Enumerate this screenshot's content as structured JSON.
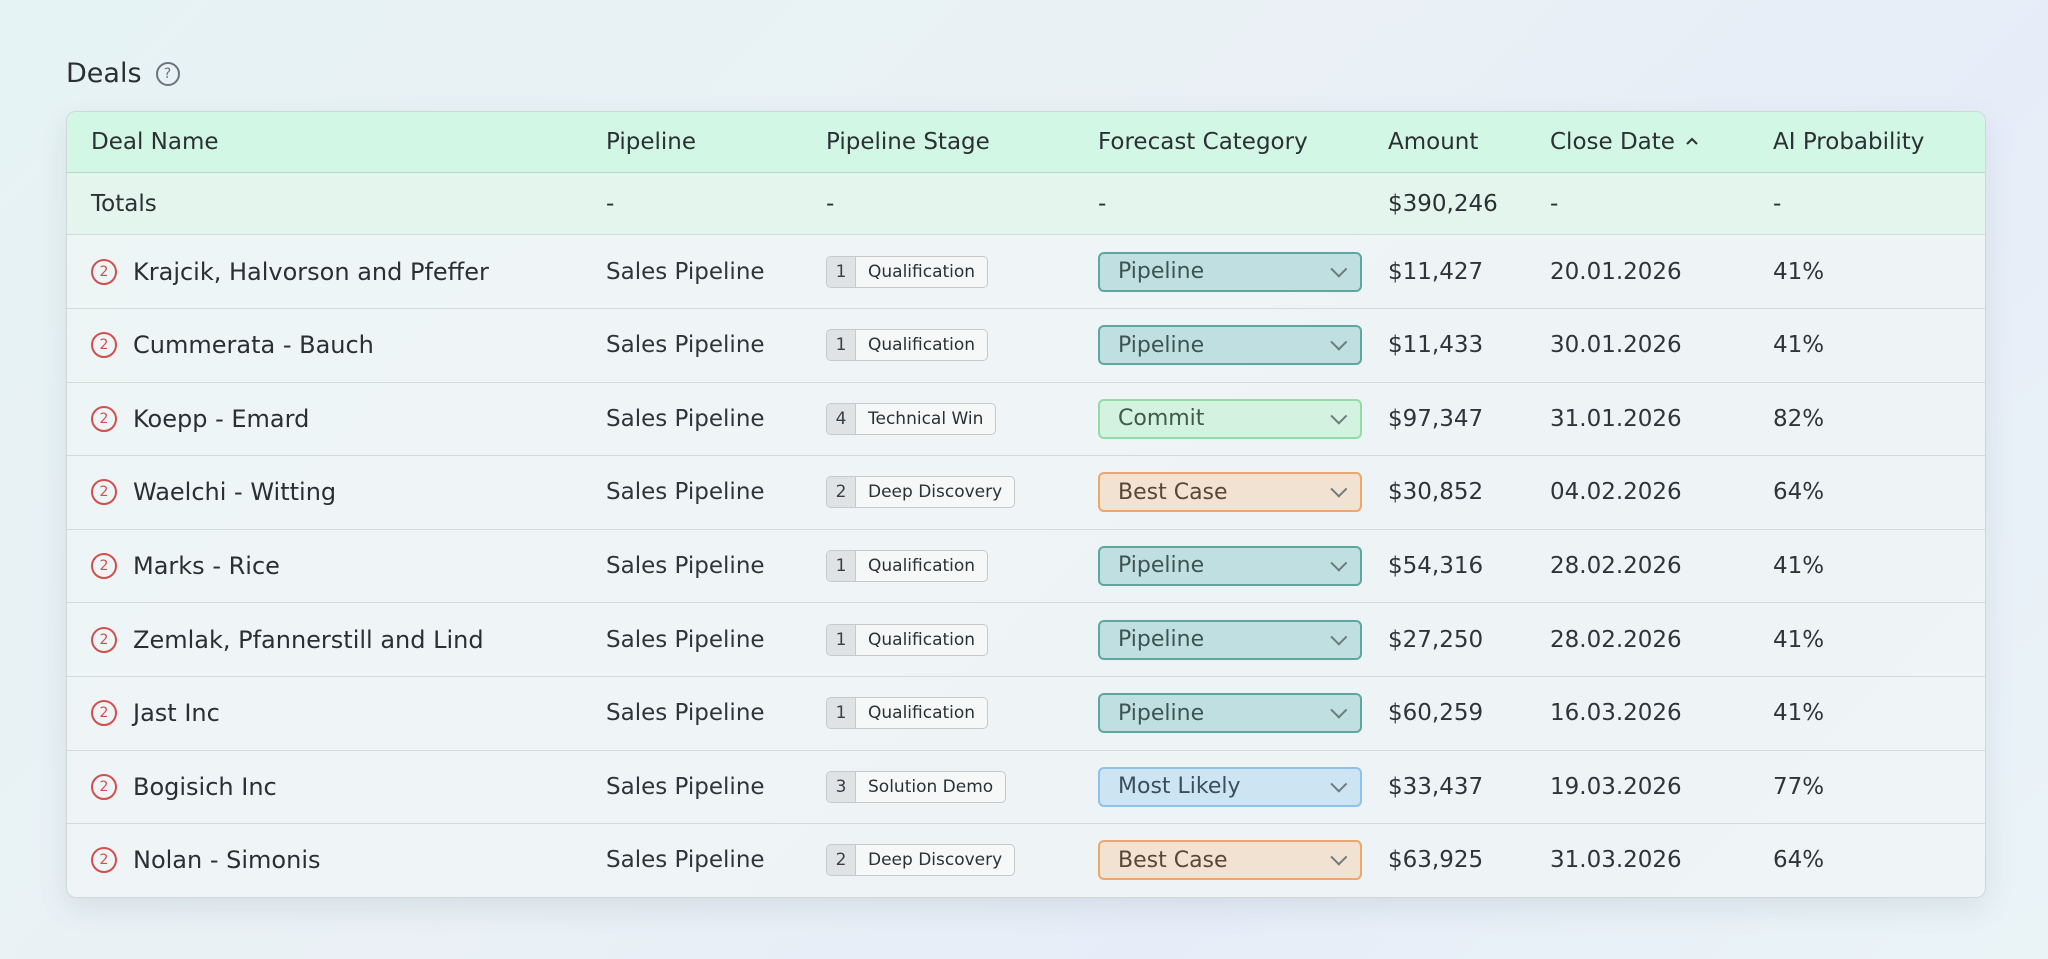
{
  "page": {
    "title": "Deals"
  },
  "columns": [
    "Deal Name",
    "Pipeline",
    "Pipeline Stage",
    "Forecast Category",
    "Amount",
    "Close Date",
    "AI Probability"
  ],
  "sort": {
    "column": "Close Date",
    "direction": "ascending",
    "icon": "chevron-up-icon"
  },
  "totals": {
    "label": "Totals",
    "pipeline": "-",
    "stage": "-",
    "forecast": "-",
    "amount": "$390,246",
    "close_date": "-",
    "probability": "-"
  },
  "rows": [
    {
      "badge": "2",
      "name": "Krajcik, Halvorson and Pfeffer",
      "pipeline": "Sales Pipeline",
      "stage_num": "1",
      "stage": "Qualification",
      "forecast": "Pipeline",
      "amount": "$11,427",
      "close_date": "20.01.2026",
      "probability": "41%"
    },
    {
      "badge": "2",
      "name": "Cummerata - Bauch",
      "pipeline": "Sales Pipeline",
      "stage_num": "1",
      "stage": "Qualification",
      "forecast": "Pipeline",
      "amount": "$11,433",
      "close_date": "30.01.2026",
      "probability": "41%"
    },
    {
      "badge": "2",
      "name": "Koepp - Emard",
      "pipeline": "Sales Pipeline",
      "stage_num": "4",
      "stage": "Technical Win",
      "forecast": "Commit",
      "amount": "$97,347",
      "close_date": "31.01.2026",
      "probability": "82%"
    },
    {
      "badge": "2",
      "name": "Waelchi - Witting",
      "pipeline": "Sales Pipeline",
      "stage_num": "2",
      "stage": "Deep Discovery",
      "forecast": "Best Case",
      "amount": "$30,852",
      "close_date": "04.02.2026",
      "probability": "64%"
    },
    {
      "badge": "2",
      "name": "Marks - Rice",
      "pipeline": "Sales Pipeline",
      "stage_num": "1",
      "stage": "Qualification",
      "forecast": "Pipeline",
      "amount": "$54,316",
      "close_date": "28.02.2026",
      "probability": "41%"
    },
    {
      "badge": "2",
      "name": "Zemlak, Pfannerstill and Lind",
      "pipeline": "Sales Pipeline",
      "stage_num": "1",
      "stage": "Qualification",
      "forecast": "Pipeline",
      "amount": "$27,250",
      "close_date": "28.02.2026",
      "probability": "41%"
    },
    {
      "badge": "2",
      "name": "Jast Inc",
      "pipeline": "Sales Pipeline",
      "stage_num": "1",
      "stage": "Qualification",
      "forecast": "Pipeline",
      "amount": "$60,259",
      "close_date": "16.03.2026",
      "probability": "41%"
    },
    {
      "badge": "2",
      "name": "Bogisich Inc",
      "pipeline": "Sales Pipeline",
      "stage_num": "3",
      "stage": "Solution Demo",
      "forecast": "Most Likely",
      "amount": "$33,437",
      "close_date": "19.03.2026",
      "probability": "77%"
    },
    {
      "badge": "2",
      "name": "Nolan - Simonis",
      "pipeline": "Sales Pipeline",
      "stage_num": "2",
      "stage": "Deep Discovery",
      "forecast": "Best Case",
      "amount": "$63,925",
      "close_date": "31.03.2026",
      "probability": "64%"
    }
  ],
  "forecast_colors": {
    "Pipeline": "#bfdfe0",
    "Commit": "#d3f3e0",
    "Best Case": "#f2e2d2",
    "Most Likely": "#cde4f2"
  },
  "header_color": "#d3f7e5"
}
